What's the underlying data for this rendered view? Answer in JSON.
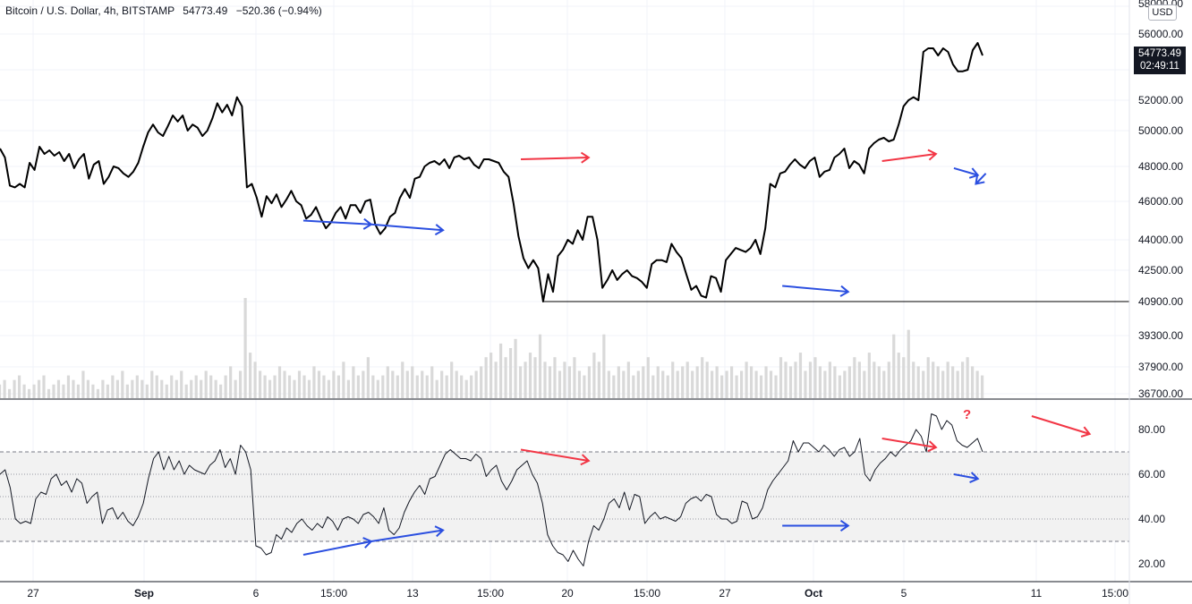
{
  "legend": {
    "symbol": "Bitcoin / U.S. Dollar, 4h, BITSTAMP",
    "last_price": "54773.49",
    "change": "−520.36 (−0.94%)"
  },
  "currency": "USD",
  "price_tag": {
    "price": "54773.49",
    "countdown": "02:49:11"
  },
  "chart_data": [
    {
      "type": "line",
      "title": "",
      "series": [
        {
          "values": [
            49000,
            48500,
            46900,
            46800,
            47000,
            46800,
            48200,
            47800,
            49100,
            48700,
            48900,
            48600,
            48800,
            48300,
            48700,
            47900,
            48400,
            48700,
            47300,
            48100,
            48300,
            47000,
            47400,
            48000,
            47900,
            47600,
            47400,
            47700,
            48200,
            49100,
            49900,
            50400,
            49900,
            49700,
            50300,
            51000,
            50600,
            51000,
            50000,
            50400,
            50200,
            49700,
            50000,
            50800,
            51800,
            51200,
            51700,
            51000,
            52200,
            51600,
            46800,
            47000,
            46200,
            45200,
            46300,
            45900,
            46400,
            45700,
            46100,
            46600,
            46000,
            45800,
            45100,
            45300,
            45700,
            45100,
            44600,
            44900,
            45400,
            45700,
            45100,
            45800,
            45800,
            45400,
            46000,
            46100,
            44800,
            44300,
            44600,
            45200,
            45400,
            46200,
            46700,
            46200,
            47300,
            47400,
            48000,
            48200,
            48300,
            48100,
            48400,
            47900,
            48500,
            48600,
            48400,
            48500,
            48100,
            47900,
            48400,
            48400,
            48300,
            48200,
            47700,
            47400,
            45900,
            44200,
            43100,
            42600,
            43000,
            42600,
            40900,
            42300,
            41400,
            43200,
            43500,
            44000,
            43800,
            44500,
            44000,
            45200,
            45200,
            44000,
            41600,
            42000,
            42500,
            42000,
            42300,
            42500,
            42200,
            42100,
            41900,
            41600,
            42800,
            43000,
            43000,
            42900,
            43800,
            43400,
            43100,
            42300,
            41500,
            41700,
            41200,
            41100,
            42200,
            42100,
            41400,
            43000,
            43300,
            43600,
            43500,
            43400,
            43600,
            44000,
            43300,
            44600,
            47000,
            46800,
            47600,
            47700,
            48100,
            48400,
            48100,
            47900,
            48300,
            48500,
            47400,
            47700,
            47800,
            48500,
            48700,
            49000,
            47900,
            48300,
            48100,
            47600,
            49000,
            49300,
            49500,
            49600,
            49400,
            49500,
            50400,
            51600,
            52000,
            52200,
            52000,
            55000,
            55200,
            55200,
            54800,
            55200,
            55000,
            54300,
            53900,
            53900,
            54000,
            55100,
            55500,
            54800
          ]
        },
        {
          "values": [
            40900,
            40900
          ]
        }
      ],
      "yticks": [
        "58000.00",
        "56000.00",
        "54000.00",
        "52000.00",
        "50000.00",
        "48000.00",
        "46000.00",
        "44000.00",
        "42500.00",
        "40900.00",
        "39300.00",
        "37900.00",
        "36700.00"
      ],
      "ylim": [
        36700,
        58000
      ],
      "grid": true,
      "legend": "top-left",
      "colors": {
        "price": "#000000",
        "volume": "#d9d9d9",
        "bullish_arrow": "#f23645",
        "bearish_arrow": "#2b4fe0"
      },
      "annotations": [
        {
          "color": "#2b4fe0",
          "from": [
            15.2,
            45000
          ],
          "to": [
            18.6,
            44800
          ]
        },
        {
          "color": "#2b4fe0",
          "from": [
            18.6,
            44800
          ],
          "to": [
            22.2,
            44500
          ]
        },
        {
          "color": "#f23645",
          "from": [
            26.1,
            48400
          ],
          "to": [
            29.5,
            48500
          ]
        },
        {
          "color": "#f23645",
          "from": [
            44.2,
            48300
          ],
          "to": [
            46.9,
            48700
          ]
        },
        {
          "color": "#2b4fe0",
          "from": [
            49.4,
            47600
          ],
          "to": [
            48.9,
            47000
          ]
        },
        {
          "color": "#2b4fe0",
          "from": [
            39.2,
            41700
          ],
          "to": [
            42.5,
            41400
          ]
        },
        {
          "color": "#2b4fe0",
          "from": [
            47.8,
            47900
          ],
          "to": [
            49.0,
            47500
          ]
        }
      ]
    },
    {
      "type": "bar",
      "title": "",
      "series": [
        {
          "values": [
            3,
            4,
            2,
            4,
            5,
            3,
            2,
            3,
            4,
            5,
            2,
            3,
            4,
            3,
            5,
            4,
            3,
            6,
            4,
            3,
            2,
            4,
            3,
            5,
            4,
            6,
            3,
            4,
            5,
            4,
            3,
            6,
            5,
            4,
            3,
            5,
            4,
            6,
            3,
            4,
            5,
            4,
            6,
            5,
            4,
            3,
            5,
            7,
            4,
            6,
            22,
            10,
            8,
            6,
            5,
            4,
            5,
            7,
            6,
            5,
            4,
            6,
            5,
            4,
            7,
            6,
            5,
            4,
            6,
            5,
            8,
            4,
            7,
            5,
            6,
            9,
            5,
            4,
            5,
            7,
            6,
            5,
            8,
            6,
            7,
            5,
            6,
            5,
            7,
            4,
            6,
            5,
            8,
            6,
            5,
            4,
            5,
            6,
            7,
            9,
            10,
            8,
            12,
            9,
            11,
            13,
            7,
            8,
            10,
            9,
            14,
            8,
            7,
            9,
            6,
            8,
            7,
            9,
            6,
            5,
            7,
            10,
            8,
            14,
            6,
            5,
            7,
            6,
            8,
            5,
            6,
            7,
            9,
            5,
            7,
            6,
            5,
            8,
            6,
            7,
            8,
            6,
            7,
            9,
            8,
            6,
            7,
            5,
            6,
            7,
            5,
            6,
            8,
            7,
            6,
            5,
            7,
            6,
            5,
            9,
            8,
            7,
            8,
            10,
            6,
            8,
            9,
            7,
            6,
            8,
            7,
            5,
            6,
            7,
            9,
            8,
            6,
            10,
            8,
            7,
            6,
            8,
            14,
            10,
            9,
            15,
            8,
            7,
            6,
            9,
            8,
            7,
            6,
            8,
            7,
            6,
            8,
            9,
            7,
            6,
            5
          ]
        }
      ]
    },
    {
      "type": "line",
      "title": "",
      "series": [
        {
          "values": [
            60,
            62,
            54,
            40,
            38,
            39,
            38,
            49,
            52,
            51,
            58,
            60,
            55,
            57,
            52,
            58,
            56,
            47,
            50,
            52,
            38,
            44,
            45,
            40,
            43,
            39,
            37,
            41,
            47,
            58,
            67,
            70,
            62,
            68,
            62,
            66,
            60,
            64,
            62,
            61,
            60,
            64,
            66,
            71,
            63,
            67,
            60,
            73,
            70,
            62,
            28,
            27,
            24,
            25,
            33,
            31,
            36,
            34,
            38,
            40,
            37,
            35,
            38,
            36,
            41,
            39,
            35,
            40,
            41,
            40,
            38,
            42,
            43,
            41,
            38,
            45,
            35,
            33,
            36,
            43,
            48,
            52,
            55,
            51,
            58,
            59,
            64,
            69,
            71,
            69,
            67,
            67,
            66,
            69,
            67,
            59,
            62,
            64,
            57,
            53,
            57,
            62,
            64,
            66,
            60,
            56,
            47,
            33,
            28,
            25,
            24,
            21,
            26,
            22,
            19,
            30,
            37,
            35,
            40,
            47,
            49,
            45,
            52,
            44,
            51,
            50,
            38,
            41,
            43,
            40,
            41,
            40,
            39,
            41,
            47,
            49,
            50,
            48,
            51,
            50,
            42,
            40,
            40,
            38,
            39,
            48,
            47,
            40,
            41,
            45,
            53,
            57,
            60,
            63,
            66,
            75,
            70,
            74,
            74,
            72,
            70,
            73,
            71,
            68,
            71,
            72,
            68,
            70,
            76,
            60,
            57,
            62,
            65,
            67,
            70,
            68,
            71,
            73,
            75,
            80,
            77,
            70,
            87,
            86,
            80,
            84,
            82,
            75,
            73,
            72,
            74,
            76,
            70
          ]
        },
        {
          "values": [
            30,
            30
          ],
          "name": ""
        }
      ],
      "yticks": [
        "80.00",
        "60.00",
        "40.00",
        "20.00"
      ],
      "ylim": [
        14,
        90
      ],
      "bands": {
        "upper": 70,
        "middle": 50,
        "lower": 30,
        "fill": "#f2f2f2"
      },
      "annotations": [
        {
          "color": "#2b4fe0",
          "from": [
            15.2,
            24
          ],
          "to": [
            18.6,
            30
          ]
        },
        {
          "color": "#2b4fe0",
          "from": [
            18.6,
            30
          ],
          "to": [
            22.2,
            35
          ]
        },
        {
          "color": "#f23645",
          "from": [
            26.1,
            71
          ],
          "to": [
            29.5,
            66
          ]
        },
        {
          "color": "#f23645",
          "from": [
            44.2,
            76
          ],
          "to": [
            46.9,
            72
          ]
        },
        {
          "color": "#2b4fe0",
          "from": [
            47.8,
            60
          ],
          "to": [
            49.0,
            58
          ]
        },
        {
          "color": "#2b4fe0",
          "from": [
            39.2,
            37
          ],
          "to": [
            42.5,
            37
          ]
        },
        {
          "color": "#f23645",
          "from": [
            51.7,
            86
          ],
          "to": [
            54.6,
            78
          ]
        }
      ],
      "question_mark": "?"
    }
  ],
  "x_axis": {
    "labels": [
      "27",
      "Sep",
      "6",
      "15:00",
      "13",
      "15:00",
      "20",
      "15:00",
      "27",
      "Oct",
      "5",
      "11",
      "15:00"
    ],
    "bold": [
      "Sep",
      "Oct"
    ]
  }
}
